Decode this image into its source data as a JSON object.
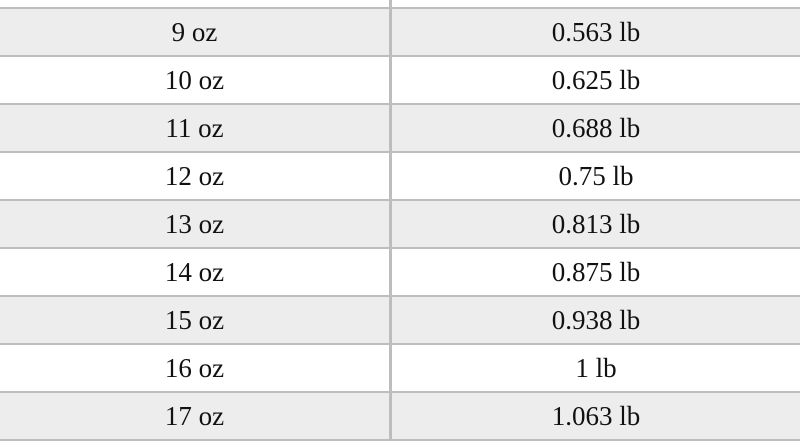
{
  "rows": [
    {
      "oz": "9 oz",
      "lb": "0.563 lb"
    },
    {
      "oz": "10 oz",
      "lb": "0.625 lb"
    },
    {
      "oz": "11 oz",
      "lb": "0.688 lb"
    },
    {
      "oz": "12 oz",
      "lb": "0.75 lb"
    },
    {
      "oz": "13 oz",
      "lb": "0.813 lb"
    },
    {
      "oz": "14 oz",
      "lb": "0.875 lb"
    },
    {
      "oz": "15 oz",
      "lb": "0.938 lb"
    },
    {
      "oz": "16 oz",
      "lb": "1 lb"
    },
    {
      "oz": "17 oz",
      "lb": "1.063 lb"
    }
  ],
  "colors": {
    "stripe": "#ededed",
    "grid": "#bdbdbd"
  }
}
